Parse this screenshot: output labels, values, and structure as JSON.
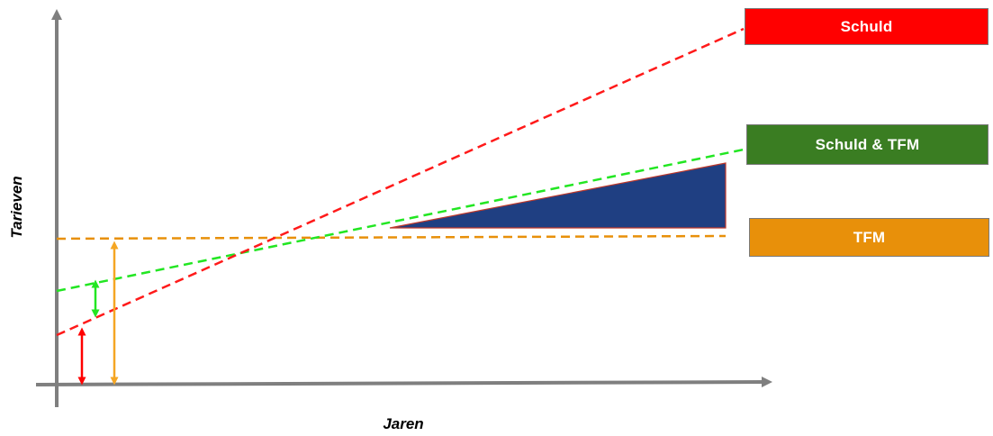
{
  "axes": {
    "x_label": "Jaren",
    "y_label": "Tarieven"
  },
  "legend": [
    {
      "key": "schuld",
      "label": "Schuld",
      "color": "#ff0000"
    },
    {
      "key": "schuld_tfm",
      "label": "Schuld & TFM",
      "color": "#3a7d22"
    },
    {
      "key": "tfm",
      "label": "TFM",
      "color": "#e8900a"
    }
  ],
  "colors": {
    "axis": "#7f7f7f",
    "schuld_line": "#ff1a1a",
    "schuld_tfm_line": "#22e622",
    "tfm_line": "#e8900a",
    "area_fill": "#1f3f82",
    "area_edge": "#c0392b"
  }
}
